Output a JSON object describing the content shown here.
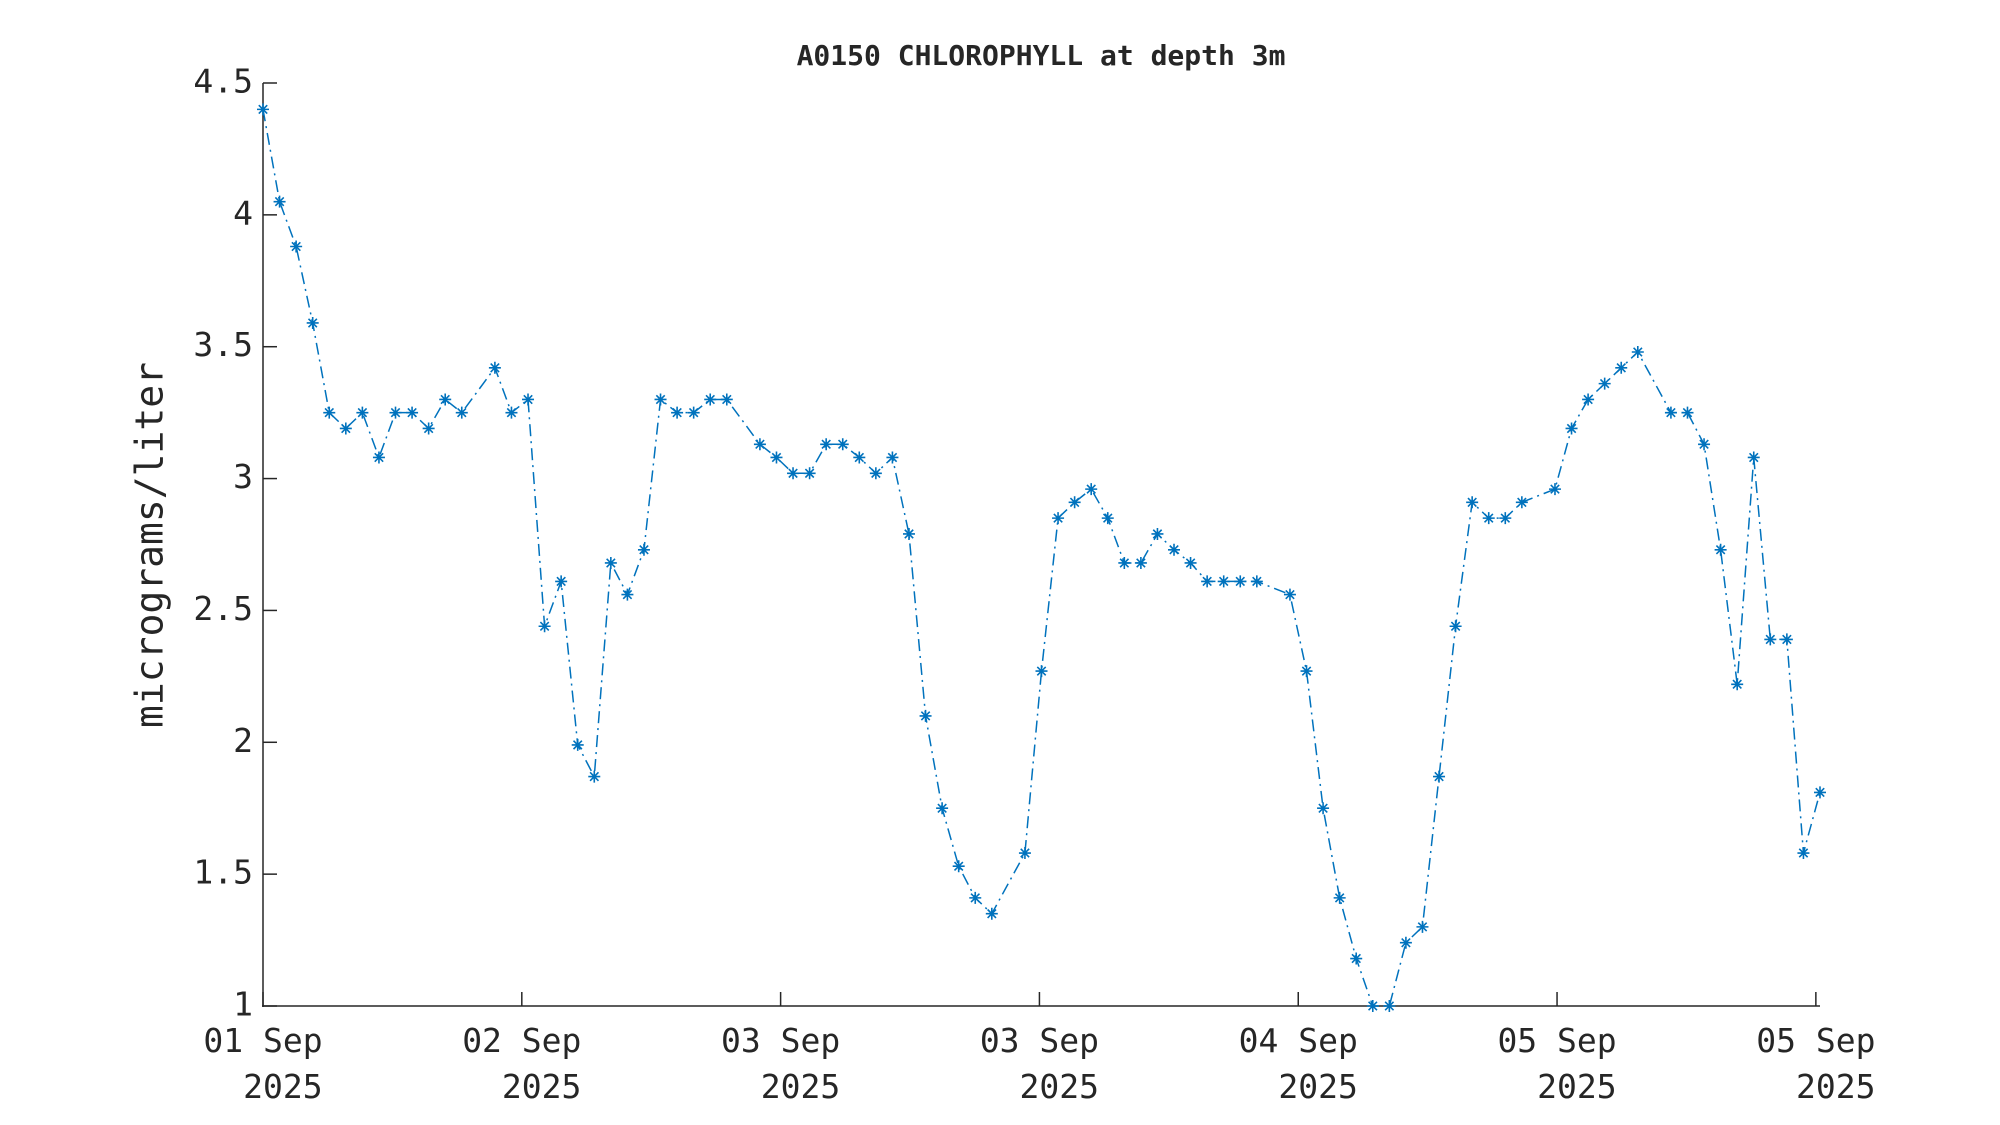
{
  "chart_data": {
    "type": "line",
    "title": "A0150 CHLOROPHYLL at depth 3m",
    "y_label": "micrograms/liter",
    "x": [
      0,
      1,
      2,
      3,
      4,
      5,
      6,
      7,
      8,
      9,
      10,
      11,
      12,
      14,
      15,
      16,
      17,
      18,
      19,
      20,
      21,
      22,
      23,
      24,
      25,
      26,
      27,
      28,
      30,
      31,
      32,
      33,
      34,
      35,
      36,
      37,
      38,
      39,
      40,
      41,
      42,
      43,
      44,
      46,
      47,
      48,
      49,
      50,
      51,
      52,
      53,
      54,
      55,
      56,
      57,
      58,
      59,
      60,
      62,
      63,
      64,
      65,
      66,
      67,
      68,
      69,
      70,
      71,
      72,
      73,
      74,
      75,
      76,
      78,
      79,
      80,
      81,
      82,
      83,
      85,
      86,
      87,
      88,
      89,
      90,
      91,
      92,
      93,
      94
    ],
    "series": [
      {
        "name": "chlorophyll",
        "color": "#0072bd",
        "values": [
          4.4,
          4.05,
          3.88,
          3.59,
          3.25,
          3.19,
          3.25,
          3.08,
          3.25,
          3.25,
          3.19,
          3.3,
          3.25,
          3.42,
          3.25,
          3.3,
          2.44,
          2.61,
          1.99,
          1.87,
          2.68,
          2.56,
          2.73,
          3.3,
          3.25,
          3.25,
          3.3,
          3.3,
          3.13,
          3.08,
          3.02,
          3.02,
          3.13,
          3.13,
          3.08,
          3.02,
          3.08,
          2.79,
          2.1,
          1.75,
          1.53,
          1.41,
          1.35,
          1.58,
          2.27,
          2.85,
          2.91,
          2.96,
          2.85,
          2.68,
          2.68,
          2.79,
          2.73,
          2.68,
          2.61,
          2.61,
          2.61,
          2.61,
          2.56,
          2.27,
          1.75,
          1.41,
          1.18,
          1.0,
          1.0,
          1.24,
          1.3,
          1.87,
          2.44,
          2.91,
          2.85,
          2.85,
          2.91,
          2.96,
          3.19,
          3.3,
          3.36,
          3.42,
          3.48,
          3.25,
          3.25,
          3.13,
          2.73,
          2.22,
          3.08,
          2.39,
          2.39,
          1.58,
          1.81
        ]
      }
    ],
    "xlim": [
      0,
      94
    ],
    "xticks": [
      {
        "value": 0,
        "label": "01 Sep\n2025"
      },
      {
        "value": 15.625,
        "label": "02 Sep\n2025"
      },
      {
        "value": 31.25,
        "label": "03 Sep\n2025"
      },
      {
        "value": 46.875,
        "label": "03 Sep\n2025"
      },
      {
        "value": 62.5,
        "label": "04 Sep\n2025"
      },
      {
        "value": 78.125,
        "label": "05 Sep\n2025"
      },
      {
        "value": 93.75,
        "label": "05 Sep\n2025"
      }
    ],
    "ylim": [
      1,
      4.5
    ],
    "yticks": [
      1,
      1.5,
      2,
      2.5,
      3,
      3.5,
      4,
      4.5
    ],
    "grid": false
  }
}
